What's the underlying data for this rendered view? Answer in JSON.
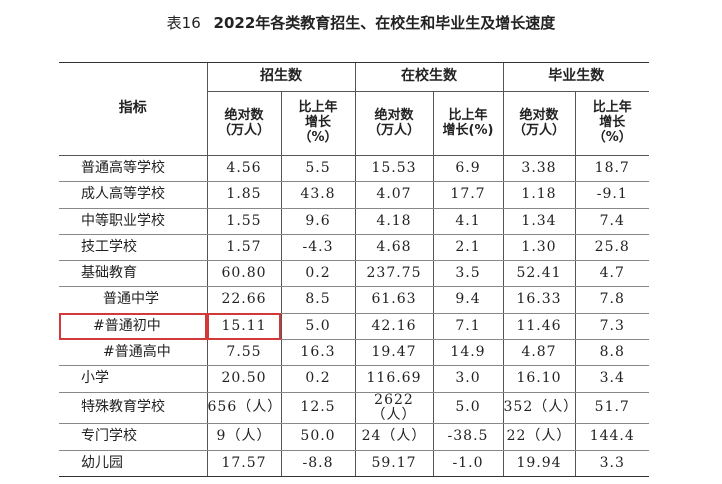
{
  "caption": {
    "number": "表16",
    "title": "2022年各类教育招生、在校生和毕业生及增长速度"
  },
  "headers": {
    "indicator": "指标",
    "groups": [
      "招生数",
      "在校生数",
      "毕业生数"
    ],
    "abs": "绝对数\n（万人）",
    "growth_a": "比上年\n增长\n（%）",
    "growth_b": "比上年\n增长(%)",
    "growth_c": "比上年\n增长\n（%）"
  },
  "rows": [
    {
      "name": "普通高等学校",
      "v": [
        "4.56",
        "5.5",
        "15.53",
        "6.9",
        "3.38",
        "18.7"
      ]
    },
    {
      "name": "成人高等学校",
      "v": [
        "1.85",
        "43.8",
        "4.07",
        "17.7",
        "1.18",
        "-9.1"
      ]
    },
    {
      "name": "中等职业学校",
      "v": [
        "1.55",
        "9.6",
        "4.18",
        "4.1",
        "1.34",
        "7.4"
      ]
    },
    {
      "name": "技工学校",
      "v": [
        "1.57",
        "-4.3",
        "4.68",
        "2.1",
        "1.30",
        "25.8"
      ]
    },
    {
      "name": "基础教育",
      "v": [
        "60.80",
        "0.2",
        "237.75",
        "3.5",
        "52.41",
        "4.7"
      ]
    },
    {
      "name": "普通中学",
      "v": [
        "22.66",
        "8.5",
        "61.63",
        "9.4",
        "16.33",
        "7.8"
      ]
    },
    {
      "name": "#普通初中",
      "v": [
        "15.11",
        "5.0",
        "42.16",
        "7.1",
        "11.46",
        "7.3"
      ]
    },
    {
      "name": "#普通高中",
      "v": [
        "7.55",
        "16.3",
        "19.47",
        "14.9",
        "4.87",
        "8.8"
      ]
    },
    {
      "name": "小学",
      "v": [
        "20.50",
        "0.2",
        "116.69",
        "3.0",
        "16.10",
        "3.4"
      ]
    },
    {
      "name": "特殊教育学校",
      "v": [
        "656（人）",
        "12.5",
        "2622（人）",
        "5.0",
        "352（人）",
        "51.7"
      ]
    },
    {
      "name": "专门学校",
      "v": [
        "9（人）",
        "50.0",
        "24（人）",
        "-38.5",
        "22（人）",
        "144.4"
      ]
    },
    {
      "name": "幼儿园",
      "v": [
        "17.57",
        "-8.8",
        "59.17",
        "-1.0",
        "19.94",
        "3.3"
      ]
    }
  ],
  "highlight": {
    "row": 6,
    "color": "#d23a3a"
  }
}
